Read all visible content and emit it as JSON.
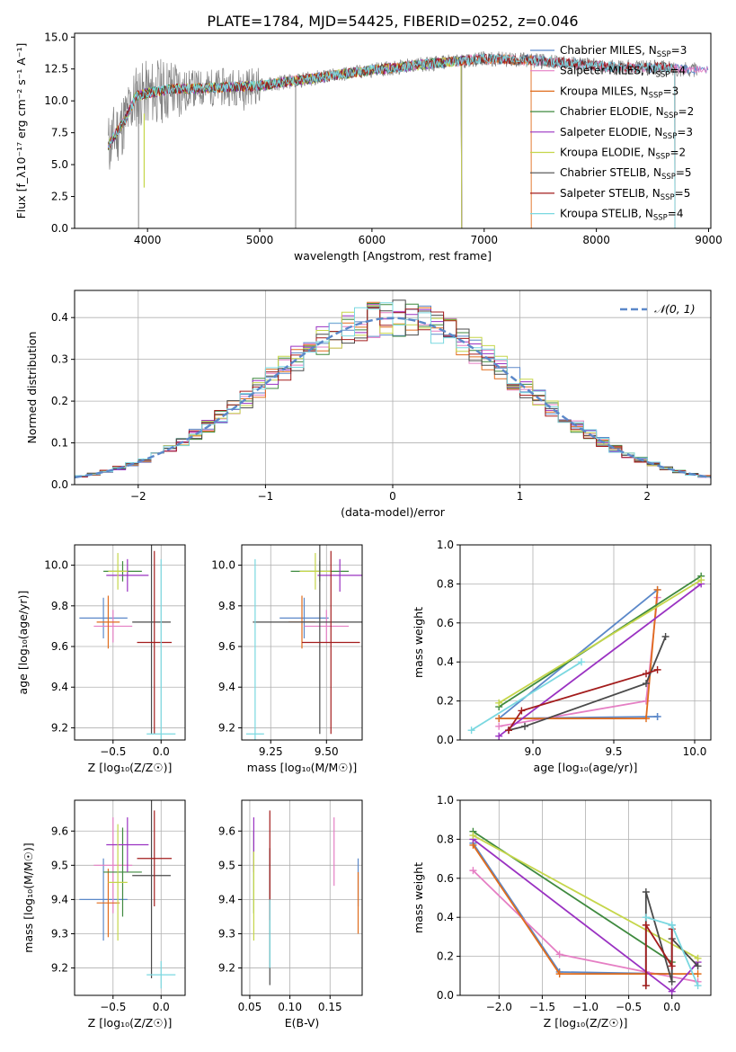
{
  "chart_data": [
    {
      "id": "spectrum",
      "type": "line",
      "title": "PLATE=1784, MJD=54425, FIBERID=0252, z=0.046",
      "xlabel": "wavelength [Angstrom, rest frame]",
      "ylabel": "Flux [f_λ10⁻¹⁷ erg cm⁻² s⁻¹ A⁻¹]",
      "xlim": [
        3350,
        9020
      ],
      "ylim": [
        0,
        15.3
      ],
      "xticks": [
        4000,
        5000,
        6000,
        7000,
        8000,
        9000
      ],
      "xtick_labels": [
        "4000",
        "5000",
        "6000",
        "7000",
        "8000",
        "9000"
      ],
      "yticks": [
        0,
        2.5,
        5,
        7.5,
        10,
        12.5,
        15
      ],
      "ytick_labels": [
        "0.0",
        "2.5",
        "5.0",
        "7.5",
        "10.0",
        "12.5",
        "15.0"
      ],
      "grid": false,
      "legend_position": "right",
      "observed_color": "#808080",
      "continuum_x": [
        3650,
        3700,
        3800,
        3900,
        4000,
        4200,
        4500,
        5000,
        5500,
        6000,
        6500,
        7000,
        7400,
        7800,
        8200,
        8600,
        8900
      ],
      "continuum_y": [
        6.5,
        7.2,
        8.5,
        10.4,
        10.6,
        10.9,
        11.0,
        11.2,
        11.8,
        12.4,
        12.9,
        13.3,
        13.2,
        12.9,
        12.6,
        12.6,
        12.4
      ],
      "series": [
        {
          "name": "Chabrier MILES, N_SSP=3",
          "label_main": "Chabrier MILES, N",
          "label_sub": "SSP",
          "label_end": "=3",
          "color": "#5b88c9",
          "xmax": 9000
        },
        {
          "name": "Salpeter MILES, N_SSP=4",
          "label_main": "Salpeter MILES, N",
          "label_sub": "SSP",
          "label_end": "=4",
          "color": "#e57fc4",
          "xmax": 9000
        },
        {
          "name": "Kroupa MILES, N_SSP=3",
          "label_main": "Kroupa MILES, N",
          "label_sub": "SSP",
          "label_end": "=3",
          "color": "#e06c1c",
          "xmax": 7420
        },
        {
          "name": "Chabrier ELODIE, N_SSP=2",
          "label_main": "Chabrier ELODIE, N",
          "label_sub": "SSP",
          "label_end": "=2",
          "color": "#3f8a3f",
          "xmax": 6800
        },
        {
          "name": "Salpeter ELODIE, N_SSP=3",
          "label_main": "Salpeter ELODIE, N",
          "label_sub": "SSP",
          "label_end": "=3",
          "color": "#9a32c2",
          "xmax": 6800
        },
        {
          "name": "Kroupa ELODIE, N_SSP=2",
          "label_main": "Kroupa ELODIE, N",
          "label_sub": "SSP",
          "label_end": "=2",
          "color": "#c5d64a",
          "xmax": 6800
        },
        {
          "name": "Chabrier STELIB, N_SSP=5",
          "label_main": "Chabrier STELIB, N",
          "label_sub": "SSP",
          "label_end": "=5",
          "color": "#4a4a4a",
          "xmax": 8700
        },
        {
          "name": "Salpeter STELIB, N_SSP=5",
          "label_main": "Salpeter STELIB, N",
          "label_sub": "SSP",
          "label_end": "=5",
          "color": "#a31c1c",
          "xmax": 8700
        },
        {
          "name": "Kroupa STELIB, N_SSP=4",
          "label_main": "Kroupa STELIB, N",
          "label_sub": "SSP",
          "label_end": "=4",
          "color": "#7ad8e0",
          "xmax": 8700
        }
      ]
    },
    {
      "id": "residuals",
      "type": "histogram",
      "xlabel": "(data-model)/error",
      "ylabel": "Normed distribution",
      "xlim": [
        -2.5,
        2.5
      ],
      "ylim": [
        0,
        0.465
      ],
      "xticks": [
        -2,
        -1,
        0,
        1,
        2
      ],
      "xtick_labels": [
        "−2",
        "−1",
        "0",
        "1",
        "2"
      ],
      "yticks": [
        0,
        0.1,
        0.2,
        0.3,
        0.4
      ],
      "ytick_labels": [
        "0.0",
        "0.1",
        "0.2",
        "0.3",
        "0.4"
      ],
      "grid": true,
      "legend_position": "upper right",
      "legend_label": "𝒩(0, 1)",
      "gaussian": {
        "mean": 0,
        "sigma": 1,
        "color": "#5b88c9",
        "dashed": true
      },
      "bin_width": 0.1,
      "series_colors": [
        "#5b88c9",
        "#e57fc4",
        "#e06c1c",
        "#3f8a3f",
        "#9a32c2",
        "#c5d64a",
        "#4a4a4a",
        "#a31c1c",
        "#7ad8e0"
      ]
    },
    {
      "id": "age_vs_Z",
      "type": "errorbar",
      "xlabel": "Z [log₁₀(Z/Z☉)]",
      "ylabel": "age  [log₁₀(age/yr)]",
      "xlim": [
        -0.9,
        0.25
      ],
      "ylim": [
        9.14,
        10.1
      ],
      "xticks": [
        -0.5,
        0.0
      ],
      "xtick_labels": [
        "−0.5",
        "0.0"
      ],
      "yticks": [
        9.2,
        9.4,
        9.6,
        9.8,
        10.0
      ],
      "ytick_labels": [
        "9.2",
        "9.4",
        "9.6",
        "9.8",
        "10.0"
      ],
      "grid": true,
      "points": [
        {
          "color": "#5b88c9",
          "x": -0.6,
          "y": 9.74,
          "xerr": 0.25,
          "yerr": 0.1
        },
        {
          "color": "#e57fc4",
          "x": -0.5,
          "y": 9.7,
          "xerr": 0.2,
          "yerr": 0.08
        },
        {
          "color": "#e06c1c",
          "x": -0.55,
          "y": 9.72,
          "xerr": 0.12,
          "yerr": 0.13
        },
        {
          "color": "#3f8a3f",
          "x": -0.4,
          "y": 9.97,
          "xerr": 0.2,
          "yerr": 0.05
        },
        {
          "color": "#9a32c2",
          "x": -0.35,
          "y": 9.95,
          "xerr": 0.22,
          "yerr": 0.08
        },
        {
          "color": "#c5d64a",
          "x": -0.45,
          "y": 9.97,
          "xerr": 0.1,
          "yerr": 0.09
        },
        {
          "color": "#4a4a4a",
          "x": -0.1,
          "y": 9.72,
          "xerr": 0.2,
          "yerr": 0.55
        },
        {
          "color": "#a31c1c",
          "x": -0.07,
          "y": 9.62,
          "xerr": 0.18,
          "yerr": 0.45
        },
        {
          "color": "#7ad8e0",
          "x": 0.0,
          "y": 9.17,
          "xerr": 0.15,
          "yerr": 0.86
        }
      ]
    },
    {
      "id": "age_vs_mass",
      "type": "errorbar",
      "xlabel": "mass [log₁₀(M/M☉)]",
      "ylabel": "",
      "xlim": [
        9.12,
        9.66
      ],
      "ylim": [
        9.14,
        10.1
      ],
      "xticks": [
        9.25,
        9.5
      ],
      "xtick_labels": [
        "9.25",
        "9.50"
      ],
      "yticks": [
        9.2,
        9.4,
        9.6,
        9.8,
        10.0
      ],
      "ytick_labels": [
        "9.2",
        "9.4",
        "9.6",
        "9.8",
        "10.0"
      ],
      "grid": true,
      "points": [
        {
          "color": "#5b88c9",
          "x": 9.4,
          "y": 9.74,
          "xerr": 0.11,
          "yerr": 0.1
        },
        {
          "color": "#e57fc4",
          "x": 9.5,
          "y": 9.7,
          "xerr": 0.1,
          "yerr": 0.08
        },
        {
          "color": "#e06c1c",
          "x": 9.39,
          "y": 9.72,
          "xerr": 0.06,
          "yerr": 0.13
        },
        {
          "color": "#3f8a3f",
          "x": 9.47,
          "y": 9.97,
          "xerr": 0.13,
          "yerr": 0.05
        },
        {
          "color": "#9a32c2",
          "x": 9.56,
          "y": 9.95,
          "xerr": 0.1,
          "yerr": 0.08
        },
        {
          "color": "#c5d64a",
          "x": 9.45,
          "y": 9.97,
          "xerr": 0.07,
          "yerr": 0.09
        },
        {
          "color": "#4a4a4a",
          "x": 9.47,
          "y": 9.72,
          "xerr": 0.3,
          "yerr": 0.55
        },
        {
          "color": "#a31c1c",
          "x": 9.52,
          "y": 9.62,
          "xerr": 0.13,
          "yerr": 0.45
        },
        {
          "color": "#7ad8e0",
          "x": 9.18,
          "y": 9.17,
          "xerr": 0.04,
          "yerr": 0.86
        }
      ]
    },
    {
      "id": "weight_vs_age",
      "type": "line",
      "xlabel": "age  [log₁₀(age/yr)]",
      "ylabel": "mass weight",
      "xlim": [
        8.55,
        10.1
      ],
      "ylim": [
        0,
        1
      ],
      "xticks": [
        9.0,
        9.5,
        10.0
      ],
      "xtick_labels": [
        "9.0",
        "9.5",
        "10.0"
      ],
      "yticks": [
        0,
        0.2,
        0.4,
        0.6,
        0.8,
        1.0
      ],
      "ytick_labels": [
        "0.0",
        "0.2",
        "0.4",
        "0.6",
        "0.8",
        "1.0"
      ],
      "grid": true,
      "series": [
        {
          "color": "#5b88c9",
          "x": [
            9.77,
            9.77,
            8.79,
            9.77
          ],
          "y": [
            0.12,
            0.12,
            0.11,
            0.77
          ]
        },
        {
          "color": "#e57fc4",
          "x": [
            8.79,
            9.7,
            9.77
          ],
          "y": [
            0.07,
            0.2,
            0.73
          ]
        },
        {
          "color": "#e06c1c",
          "x": [
            9.77,
            9.7,
            8.79
          ],
          "y": [
            0.77,
            0.11,
            0.11
          ]
        },
        {
          "color": "#3f8a3f",
          "x": [
            8.79,
            10.04
          ],
          "y": [
            0.17,
            0.84
          ]
        },
        {
          "color": "#9a32c2",
          "x": [
            8.79,
            10.04
          ],
          "y": [
            0.02,
            0.8
          ]
        },
        {
          "color": "#c5d64a",
          "x": [
            8.79,
            10.04
          ],
          "y": [
            0.19,
            0.82
          ]
        },
        {
          "color": "#4a4a4a",
          "x": [
            8.85,
            8.95,
            9.7,
            9.82
          ],
          "y": [
            0.05,
            0.07,
            0.29,
            0.53
          ]
        },
        {
          "color": "#a31c1c",
          "x": [
            8.85,
            8.93,
            9.7,
            9.77
          ],
          "y": [
            0.05,
            0.15,
            0.34,
            0.36
          ]
        },
        {
          "color": "#7ad8e0",
          "x": [
            8.62,
            9.3
          ],
          "y": [
            0.05,
            0.4
          ]
        }
      ]
    },
    {
      "id": "mass_vs_Z",
      "type": "errorbar",
      "xlabel": "Z [log₁₀(Z/Z☉)]",
      "ylabel": "mass [log₁₀(M/M☉)]",
      "xlim": [
        -0.9,
        0.25
      ],
      "ylim": [
        9.12,
        9.69
      ],
      "xticks": [
        -0.5,
        0.0
      ],
      "xtick_labels": [
        "−0.5",
        "0.0"
      ],
      "yticks": [
        9.2,
        9.3,
        9.4,
        9.5,
        9.6
      ],
      "ytick_labels": [
        "9.2",
        "9.3",
        "9.4",
        "9.5",
        "9.6"
      ],
      "grid": true,
      "points": [
        {
          "color": "#5b88c9",
          "x": -0.6,
          "y": 9.4,
          "xerr": 0.25,
          "yerr": 0.12
        },
        {
          "color": "#e57fc4",
          "x": -0.5,
          "y": 9.5,
          "xerr": 0.2,
          "yerr": 0.14
        },
        {
          "color": "#e06c1c",
          "x": -0.55,
          "y": 9.39,
          "xerr": 0.12,
          "yerr": 0.1
        },
        {
          "color": "#3f8a3f",
          "x": -0.4,
          "y": 9.48,
          "xerr": 0.2,
          "yerr": 0.13
        },
        {
          "color": "#9a32c2",
          "x": -0.35,
          "y": 9.56,
          "xerr": 0.22,
          "yerr": 0.08
        },
        {
          "color": "#c5d64a",
          "x": -0.45,
          "y": 9.45,
          "xerr": 0.1,
          "yerr": 0.17
        },
        {
          "color": "#4a4a4a",
          "x": -0.1,
          "y": 9.47,
          "xerr": 0.2,
          "yerr": 0.3
        },
        {
          "color": "#a31c1c",
          "x": -0.07,
          "y": 9.52,
          "xerr": 0.18,
          "yerr": 0.14
        },
        {
          "color": "#7ad8e0",
          "x": 0.0,
          "y": 9.18,
          "xerr": 0.15,
          "yerr": 0.04
        }
      ]
    },
    {
      "id": "mass_vs_ebv",
      "type": "errorbar",
      "xlabel": "E(B-V)",
      "ylabel": "",
      "xlim": [
        0.04,
        0.19
      ],
      "ylim": [
        9.12,
        9.69
      ],
      "xticks": [
        0.05,
        0.1,
        0.15
      ],
      "xtick_labels": [
        "0.05",
        "0.10",
        "0.15"
      ],
      "yticks": [
        9.2,
        9.3,
        9.4,
        9.5,
        9.6
      ],
      "ytick_labels": [
        "9.2",
        "9.3",
        "9.4",
        "9.5",
        "9.6"
      ],
      "grid": true,
      "points": [
        {
          "color": "#5b88c9",
          "x": 0.185,
          "y": 9.45,
          "xerr": 0,
          "yerr": 0.07
        },
        {
          "color": "#e57fc4",
          "x": 0.155,
          "y": 9.54,
          "xerr": 0,
          "yerr": 0.1
        },
        {
          "color": "#e06c1c",
          "x": 0.185,
          "y": 9.39,
          "xerr": 0,
          "yerr": 0.09
        },
        {
          "color": "#3f8a3f",
          "x": 0.055,
          "y": 9.48,
          "xerr": 0,
          "yerr": 0.12
        },
        {
          "color": "#9a32c2",
          "x": 0.055,
          "y": 9.56,
          "xerr": 0,
          "yerr": 0.08
        },
        {
          "color": "#c5d64a",
          "x": 0.055,
          "y": 9.41,
          "xerr": 0,
          "yerr": 0.13
        },
        {
          "color": "#4a4a4a",
          "x": 0.075,
          "y": 9.35,
          "xerr": 0,
          "yerr": 0.2
        },
        {
          "color": "#a31c1c",
          "x": 0.075,
          "y": 9.5,
          "xerr": 0,
          "yerr": 0.16
        },
        {
          "color": "#7ad8e0",
          "x": 0.075,
          "y": 9.3,
          "xerr": 0,
          "yerr": 0.1
        }
      ]
    },
    {
      "id": "weight_vs_Z",
      "type": "line",
      "xlabel": "Z [log₁₀(Z/Z☉)]",
      "ylabel": "mass weight",
      "xlim": [
        -2.45,
        0.45
      ],
      "ylim": [
        0,
        1
      ],
      "xticks": [
        -2.0,
        -1.5,
        -1.0,
        -0.5,
        0.0
      ],
      "xtick_labels": [
        "−2.0",
        "−1.5",
        "−1.0",
        "−0.5",
        "0.0"
      ],
      "yticks": [
        0,
        0.2,
        0.4,
        0.6,
        0.8,
        1.0
      ],
      "ytick_labels": [
        "0.0",
        "0.2",
        "0.4",
        "0.6",
        "0.8",
        "1.0"
      ],
      "grid": true,
      "series": [
        {
          "color": "#5b88c9",
          "x": [
            -2.3,
            -1.3,
            0.0,
            0.0
          ],
          "y": [
            0.78,
            0.12,
            0.11,
            0.36
          ]
        },
        {
          "color": "#e57fc4",
          "x": [
            -2.3,
            -1.3,
            -0.3,
            0.3
          ],
          "y": [
            0.64,
            0.21,
            0.12,
            0.07
          ]
        },
        {
          "color": "#e06c1c",
          "x": [
            -2.3,
            -1.3,
            0.3
          ],
          "y": [
            0.77,
            0.11,
            0.11
          ]
        },
        {
          "color": "#3f8a3f",
          "x": [
            -2.3,
            0.0
          ],
          "y": [
            0.84,
            0.17
          ]
        },
        {
          "color": "#9a32c2",
          "x": [
            -2.3,
            0.0,
            0.3
          ],
          "y": [
            0.8,
            0.02,
            0.17
          ]
        },
        {
          "color": "#c5d64a",
          "x": [
            -2.3,
            0.3
          ],
          "y": [
            0.82,
            0.19
          ]
        },
        {
          "color": "#4a4a4a",
          "x": [
            -0.3,
            -0.3,
            0.0,
            0.0,
            0.3
          ],
          "y": [
            0.05,
            0.53,
            0.07,
            0.29,
            0.15
          ]
        },
        {
          "color": "#a31c1c",
          "x": [
            -0.3,
            -0.3,
            0.0,
            0.0
          ],
          "y": [
            0.05,
            0.36,
            0.15,
            0.34
          ]
        },
        {
          "color": "#7ad8e0",
          "x": [
            -0.3,
            0.0,
            0.3
          ],
          "y": [
            0.4,
            0.36,
            0.05
          ]
        }
      ]
    }
  ]
}
